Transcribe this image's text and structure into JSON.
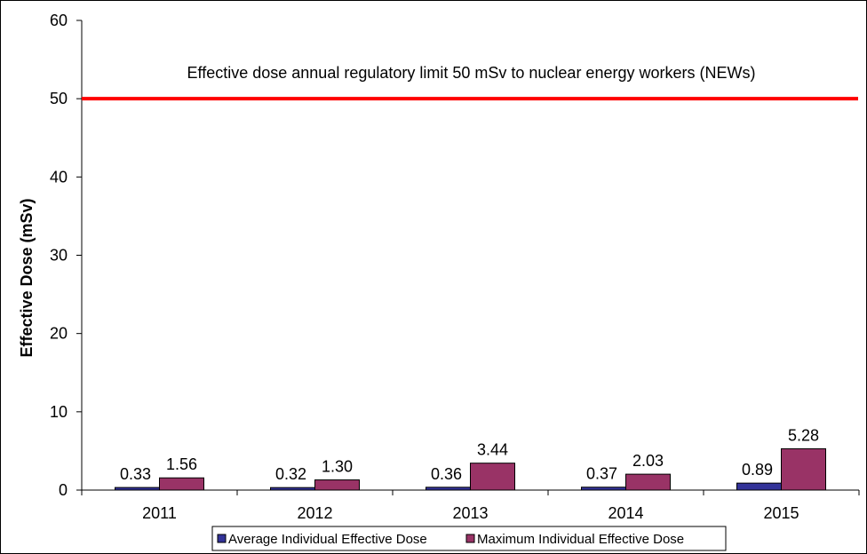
{
  "chart_data": {
    "type": "bar",
    "title": "",
    "xlabel": "",
    "ylabel": "Effective Dose (mSv)",
    "ylim": [
      0,
      60
    ],
    "yticks": [
      0,
      10,
      20,
      30,
      40,
      50,
      60
    ],
    "categories": [
      "2011",
      "2012",
      "2013",
      "2014",
      "2015"
    ],
    "series": [
      {
        "name": "Average Individual Effective Dose",
        "values": [
          0.33,
          0.32,
          0.36,
          0.37,
          0.89
        ],
        "labels": [
          "0.33",
          "0.32",
          "0.36",
          "0.37",
          "0.89"
        ],
        "color": "#333399"
      },
      {
        "name": "Maximum Individual Effective Dose",
        "values": [
          1.56,
          1.3,
          3.44,
          2.03,
          5.28
        ],
        "labels": [
          "1.56",
          "1.30",
          "3.44",
          "2.03",
          "5.28"
        ],
        "color": "#993366"
      }
    ],
    "reference_line": {
      "value": 50,
      "color": "#ff0000",
      "label": "Effective dose annual regulatory limit 50 mSv to nuclear energy workers (NEWs)"
    },
    "grid": false,
    "legend_position": "bottom"
  }
}
